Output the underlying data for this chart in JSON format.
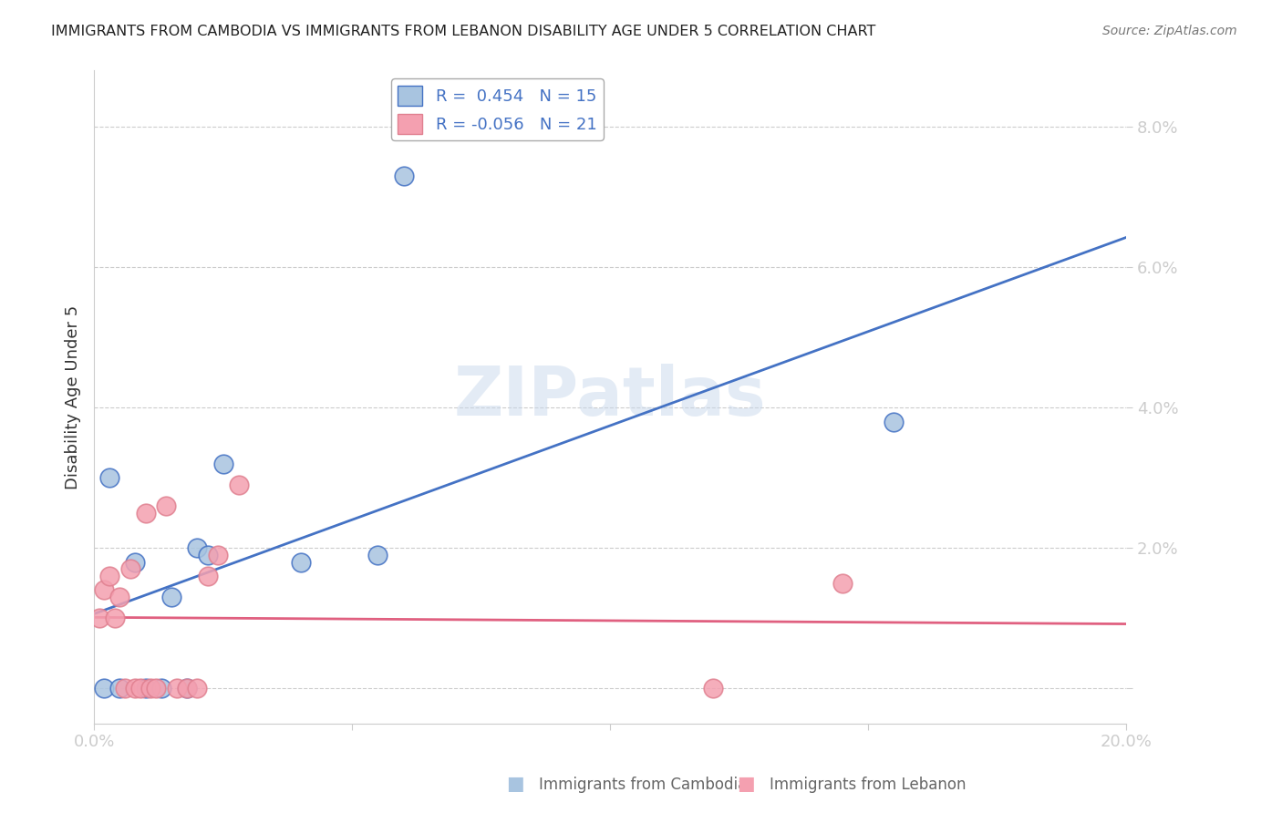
{
  "title": "IMMIGRANTS FROM CAMBODIA VS IMMIGRANTS FROM LEBANON DISABILITY AGE UNDER 5 CORRELATION CHART",
  "source": "Source: ZipAtlas.com",
  "ylabel": "Disability Age Under 5",
  "xlim": [
    0.0,
    0.2
  ],
  "ylim": [
    -0.005,
    0.088
  ],
  "legend_r_cambodia": "R =  0.454",
  "legend_n_cambodia": "N = 15",
  "legend_r_lebanon": "R = -0.056",
  "legend_n_lebanon": "N = 21",
  "color_cambodia": "#a8c4e0",
  "color_lebanon": "#f4a0b0",
  "color_line_cambodia": "#4472c4",
  "color_line_lebanon": "#e06080",
  "color_text": "#4472c4",
  "cambodia_x": [
    0.002,
    0.003,
    0.005,
    0.008,
    0.01,
    0.013,
    0.015,
    0.018,
    0.02,
    0.022,
    0.025,
    0.04,
    0.055,
    0.06,
    0.155
  ],
  "cambodia_y": [
    0.0,
    0.03,
    0.0,
    0.018,
    0.0,
    0.0,
    0.013,
    0.0,
    0.02,
    0.019,
    0.032,
    0.018,
    0.019,
    0.073,
    0.038
  ],
  "lebanon_x": [
    0.001,
    0.002,
    0.003,
    0.004,
    0.005,
    0.006,
    0.007,
    0.008,
    0.009,
    0.01,
    0.011,
    0.012,
    0.014,
    0.016,
    0.018,
    0.02,
    0.022,
    0.024,
    0.028,
    0.12,
    0.145
  ],
  "lebanon_y": [
    0.01,
    0.014,
    0.016,
    0.01,
    0.013,
    0.0,
    0.017,
    0.0,
    0.0,
    0.025,
    0.0,
    0.0,
    0.026,
    0.0,
    0.0,
    0.0,
    0.016,
    0.019,
    0.029,
    0.0,
    0.015
  ],
  "ytick_vals": [
    0.0,
    0.02,
    0.04,
    0.06,
    0.08
  ],
  "ytick_labels": [
    "",
    "2.0%",
    "4.0%",
    "6.0%",
    "8.0%"
  ],
  "xtick_vals": [
    0.0,
    0.05,
    0.1,
    0.15,
    0.2
  ],
  "xtick_labels": [
    "0.0%",
    "",
    "",
    "",
    "20.0%"
  ]
}
